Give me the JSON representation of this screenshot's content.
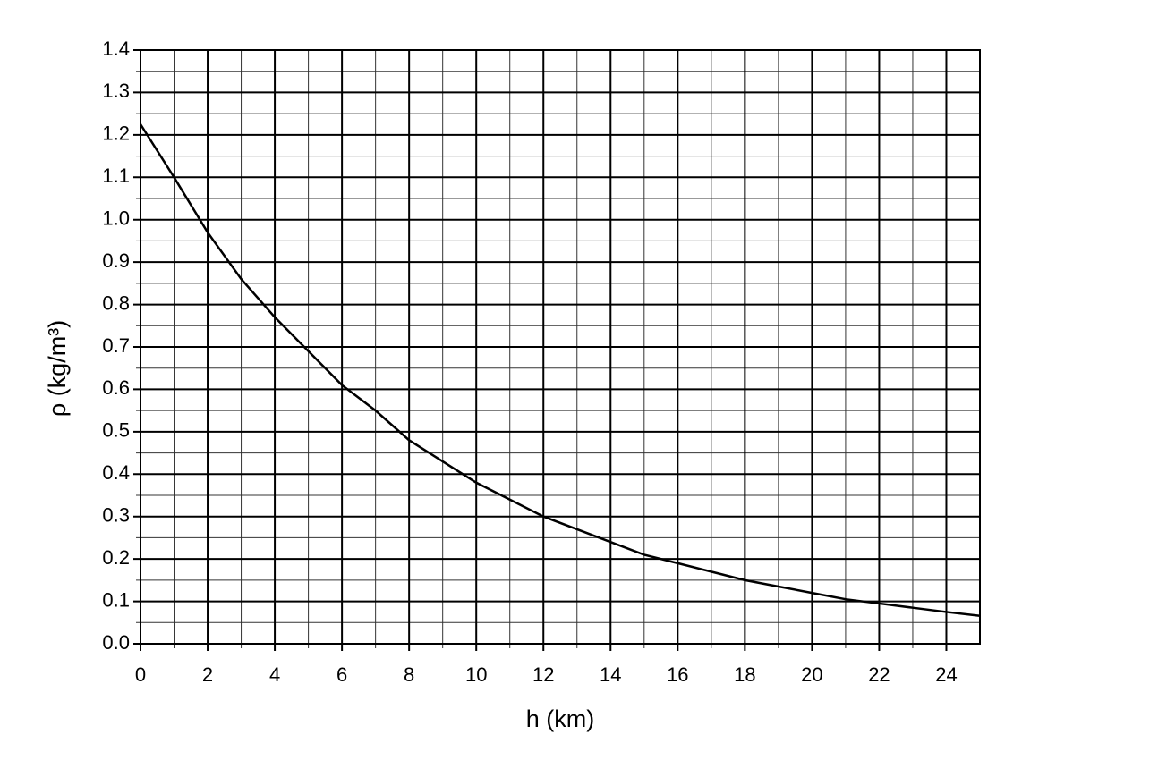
{
  "chart_data": {
    "type": "line",
    "xlabel": "h (km)",
    "ylabel": "ρ (kg/m³)",
    "x": [
      0,
      1,
      2,
      3,
      4,
      5,
      6,
      7,
      8,
      9,
      10,
      11,
      12,
      13,
      14,
      15,
      16,
      17,
      18,
      19,
      20,
      21,
      22,
      23,
      24,
      25
    ],
    "series": [
      {
        "color": "#000000",
        "values": [
          1.225,
          1.1,
          0.97,
          0.86,
          0.77,
          0.69,
          0.61,
          0.55,
          0.48,
          0.43,
          0.38,
          0.34,
          0.3,
          0.27,
          0.24,
          0.21,
          0.19,
          0.17,
          0.15,
          0.135,
          0.12,
          0.105,
          0.095,
          0.085,
          0.075,
          0.066
        ]
      }
    ],
    "xlim": [
      0,
      25
    ],
    "xticks": [
      0,
      2,
      4,
      6,
      8,
      10,
      12,
      14,
      16,
      18,
      20,
      22,
      24
    ],
    "ylim": [
      0,
      1.4
    ],
    "yticks": [
      {
        "value": 0,
        "label": "0.0"
      },
      0.1,
      0.2,
      0.3,
      0.4,
      0.5,
      0.6,
      0.7,
      0.8,
      0.9,
      {
        "value": 1,
        "label": "1.0"
      },
      1.1,
      1.2,
      1.3,
      1.4
    ],
    "grid": true,
    "minor_grid": true
  }
}
